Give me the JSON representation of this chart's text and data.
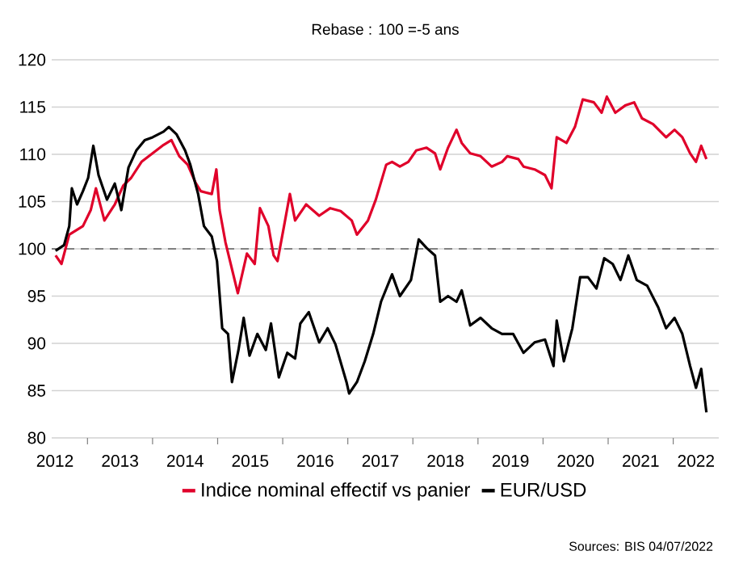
{
  "chart_data": {
    "type": "line",
    "title": "Rebase : 100 =-5 ans",
    "xlim": [
      2012.45,
      2022.7
    ],
    "xticks": [
      {
        "value": 2012.5,
        "label": "2012"
      },
      {
        "value": 2013,
        "label": null
      },
      {
        "value": 2013.5,
        "label": "2013"
      },
      {
        "value": 2014,
        "label": null
      },
      {
        "value": 2014.5,
        "label": "2014"
      },
      {
        "value": 2015,
        "label": null
      },
      {
        "value": 2015.5,
        "label": "2015"
      },
      {
        "value": 2016,
        "label": null
      },
      {
        "value": 2016.5,
        "label": "2016"
      },
      {
        "value": 2017,
        "label": null
      },
      {
        "value": 2017.5,
        "label": "2017"
      },
      {
        "value": 2018,
        "label": null
      },
      {
        "value": 2018.5,
        "label": "2018"
      },
      {
        "value": 2019,
        "label": null
      },
      {
        "value": 2019.5,
        "label": "2019"
      },
      {
        "value": 2020,
        "label": null
      },
      {
        "value": 2020.5,
        "label": "2020"
      },
      {
        "value": 2021,
        "label": null
      },
      {
        "value": 2021.5,
        "label": "2021"
      },
      {
        "value": 2022,
        "label": null
      },
      {
        "value": 2022.35,
        "label": "2022"
      }
    ],
    "ylim": [
      80,
      120
    ],
    "yticks": [
      80,
      85,
      90,
      95,
      100,
      105,
      110,
      115,
      120
    ],
    "grid": "y",
    "legend": "bottom",
    "ref_lines": [
      {
        "axis": "y",
        "value": 100,
        "color": "#808080",
        "line_style": "dashed"
      }
    ],
    "annotations": [
      "Sources: BIS 04/07/2022"
    ],
    "series": [
      {
        "name": "Indice nominal effectif vs panier",
        "color": "#e0002a",
        "x": [
          2012.51,
          2012.6,
          2012.72,
          2012.93,
          2013.05,
          2013.13,
          2013.26,
          2013.42,
          2013.55,
          2013.67,
          2013.83,
          2014.0,
          2014.17,
          2014.29,
          2014.41,
          2014.54,
          2014.66,
          2014.74,
          2014.91,
          2014.98,
          2015.03,
          2015.12,
          2015.24,
          2015.31,
          2015.45,
          2015.57,
          2015.65,
          2015.78,
          2015.86,
          2015.92,
          2016.02,
          2016.11,
          2016.19,
          2016.36,
          2016.56,
          2016.73,
          2016.89,
          2017.06,
          2017.14,
          2017.31,
          2017.43,
          2017.59,
          2017.68,
          2017.8,
          2017.93,
          2018.05,
          2018.21,
          2018.34,
          2018.42,
          2018.54,
          2018.67,
          2018.75,
          2018.88,
          2019.04,
          2019.21,
          2019.37,
          2019.45,
          2019.62,
          2019.7,
          2019.87,
          2020.03,
          2020.13,
          2020.21,
          2020.36,
          2020.49,
          2020.61,
          2020.78,
          2020.9,
          2020.98,
          2021.11,
          2021.27,
          2021.4,
          2021.52,
          2021.69,
          2021.89,
          2022.02,
          2022.14,
          2022.26,
          2022.35,
          2022.43,
          2022.51
        ],
        "values": [
          99.3,
          98.4,
          101.5,
          102.4,
          104.1,
          106.4,
          103.0,
          104.7,
          106.7,
          107.5,
          109.2,
          110.1,
          111.0,
          111.5,
          109.8,
          108.9,
          107.0,
          106.1,
          105.8,
          108.4,
          104.1,
          100.7,
          97.3,
          95.3,
          99.5,
          98.4,
          104.3,
          102.4,
          99.3,
          98.7,
          102.4,
          105.8,
          103.0,
          104.7,
          103.5,
          104.3,
          104.0,
          103.0,
          101.5,
          103.0,
          105.2,
          108.9,
          109.2,
          108.7,
          109.2,
          110.4,
          110.7,
          110.1,
          108.4,
          110.7,
          112.6,
          111.2,
          110.1,
          109.8,
          108.7,
          109.2,
          109.8,
          109.5,
          108.7,
          108.4,
          107.8,
          106.4,
          111.8,
          111.2,
          112.9,
          115.8,
          115.5,
          114.4,
          116.1,
          114.4,
          115.2,
          115.5,
          113.8,
          113.2,
          111.8,
          112.6,
          111.8,
          110.1,
          109.2,
          110.9,
          109.5
        ]
      },
      {
        "name": "EUR/USD",
        "color": "#000000",
        "x": [
          2012.51,
          2012.64,
          2012.72,
          2012.76,
          2012.84,
          2012.93,
          2013.01,
          2013.09,
          2013.17,
          2013.3,
          2013.42,
          2013.52,
          2013.63,
          2013.75,
          2013.88,
          2014.0,
          2014.17,
          2014.25,
          2014.37,
          2014.5,
          2014.58,
          2014.7,
          2014.79,
          2014.91,
          2014.99,
          2015.07,
          2015.16,
          2015.22,
          2015.32,
          2015.4,
          2015.49,
          2015.61,
          2015.74,
          2015.82,
          2015.94,
          2016.07,
          2016.19,
          2016.27,
          2016.4,
          2016.56,
          2016.69,
          2016.81,
          2016.98,
          2017.02,
          2017.14,
          2017.26,
          2017.39,
          2017.51,
          2017.68,
          2017.8,
          2017.97,
          2018.09,
          2018.21,
          2018.34,
          2018.42,
          2018.54,
          2018.67,
          2018.75,
          2018.88,
          2019.04,
          2019.21,
          2019.37,
          2019.54,
          2019.7,
          2019.87,
          2020.03,
          2020.16,
          2020.21,
          2020.32,
          2020.45,
          2020.57,
          2020.69,
          2020.82,
          2020.94,
          2021.07,
          2021.19,
          2021.31,
          2021.44,
          2021.6,
          2021.77,
          2021.89,
          2022.02,
          2022.14,
          2022.26,
          2022.35,
          2022.43,
          2022.51
        ],
        "values": [
          99.8,
          100.4,
          102.4,
          106.4,
          104.7,
          106.1,
          107.5,
          110.9,
          107.8,
          105.2,
          106.9,
          104.1,
          108.6,
          110.4,
          111.5,
          111.8,
          112.4,
          112.9,
          112.1,
          110.4,
          108.9,
          105.8,
          102.4,
          101.3,
          98.7,
          91.6,
          91.0,
          85.9,
          89.3,
          92.7,
          88.7,
          91.0,
          89.3,
          92.1,
          86.4,
          89.0,
          88.4,
          92.1,
          93.3,
          90.1,
          91.6,
          89.9,
          85.9,
          84.7,
          85.9,
          88.1,
          91.0,
          94.4,
          97.3,
          95.0,
          96.7,
          101.0,
          100.1,
          99.3,
          94.4,
          95.0,
          94.4,
          95.6,
          91.9,
          92.7,
          91.6,
          91.0,
          91.0,
          89.0,
          90.1,
          90.4,
          87.6,
          92.4,
          88.1,
          91.6,
          97.0,
          97.0,
          95.8,
          99.0,
          98.4,
          96.7,
          99.3,
          96.7,
          96.1,
          93.8,
          91.6,
          92.7,
          91.0,
          87.6,
          85.3,
          87.3,
          82.7
        ]
      }
    ]
  }
}
